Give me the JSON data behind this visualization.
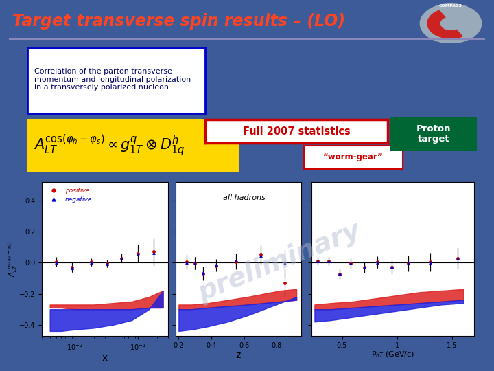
{
  "title": "Target transverse spin results – (LO)",
  "title_color": "#FF4422",
  "bg_color": "#3D5A99",
  "text_box_text": "Correlation of the parton transverse\nmomentum and longitudinal polarization\nin a transversely polarized nucleon",
  "worm_gear_text": "“worm-gear”",
  "full_stats_text": "Full 2007 statistics",
  "proton_target_text": "Proton\ntarget",
  "all_hadrons_text": "all hadrons",
  "preliminary_text": "preliminary",
  "legend_positive": "positive",
  "legend_negative": "negative",
  "xlabel1": "x",
  "xlabel2": "z",
  "xlabel3": "P$_{hT}$ (GeV/c)",
  "ylim": [
    -0.47,
    0.52
  ],
  "yticks": [
    -0.4,
    -0.2,
    0.0,
    0.2,
    0.4
  ],
  "x_positive": [
    0.005,
    0.009,
    0.018,
    0.032,
    0.055,
    0.1,
    0.18
  ],
  "x_positive_vals": [
    0.005,
    -0.03,
    0.005,
    -0.005,
    0.03,
    0.06,
    0.07
  ],
  "x_positive_err": [
    0.03,
    0.03,
    0.025,
    0.025,
    0.03,
    0.055,
    0.09
  ],
  "x_negative": [
    0.005,
    0.009,
    0.018,
    0.032,
    0.055,
    0.1,
    0.18
  ],
  "x_negative_vals": [
    0.003,
    -0.032,
    0.003,
    -0.007,
    0.028,
    0.055,
    0.065
  ],
  "x_negative_err": [
    0.028,
    0.028,
    0.022,
    0.022,
    0.028,
    0.05,
    0.085
  ],
  "z_positive": [
    0.25,
    0.3,
    0.35,
    0.43,
    0.55,
    0.7,
    0.85
  ],
  "z_positive_vals": [
    0.005,
    -0.005,
    -0.07,
    -0.02,
    0.005,
    0.055,
    -0.13
  ],
  "z_positive_err": [
    0.05,
    0.04,
    0.045,
    0.038,
    0.05,
    0.065,
    0.09
  ],
  "z_negative": [
    0.25,
    0.3,
    0.35,
    0.43,
    0.55,
    0.7,
    0.85
  ],
  "z_negative_vals": [
    0.002,
    -0.003,
    -0.065,
    -0.01,
    0.015,
    0.045,
    -0.005
  ],
  "z_negative_err": [
    0.045,
    0.038,
    0.042,
    0.035,
    0.046,
    0.06,
    0.085
  ],
  "pht_positive": [
    0.28,
    0.38,
    0.48,
    0.58,
    0.7,
    0.82,
    0.95,
    1.1,
    1.3,
    1.55
  ],
  "pht_positive_vals": [
    0.01,
    0.01,
    -0.075,
    -0.005,
    -0.03,
    0.005,
    -0.03,
    -0.005,
    0.005,
    0.03
  ],
  "pht_positive_err": [
    0.025,
    0.028,
    0.035,
    0.032,
    0.035,
    0.038,
    0.045,
    0.05,
    0.06,
    0.07
  ],
  "pht_negative": [
    0.28,
    0.38,
    0.48,
    0.58,
    0.7,
    0.82,
    0.95,
    1.1,
    1.3,
    1.55
  ],
  "pht_negative_vals": [
    0.01,
    0.01,
    -0.07,
    -0.003,
    -0.028,
    0.003,
    -0.025,
    -0.003,
    0.003,
    0.028
  ],
  "pht_negative_err": [
    0.022,
    0.025,
    0.032,
    0.029,
    0.032,
    0.035,
    0.042,
    0.047,
    0.056,
    0.065
  ],
  "band_x": [
    0.004,
    0.006,
    0.01,
    0.02,
    0.04,
    0.08,
    0.15,
    0.25
  ],
  "band_x_red_bot": [
    -0.29,
    -0.29,
    -0.3,
    -0.3,
    -0.3,
    -0.3,
    -0.29,
    -0.29
  ],
  "band_x_red_top": [
    -0.27,
    -0.27,
    -0.27,
    -0.27,
    -0.26,
    -0.25,
    -0.22,
    -0.18
  ],
  "band_x_blue_bot": [
    -0.44,
    -0.44,
    -0.43,
    -0.42,
    -0.4,
    -0.37,
    -0.3,
    -0.18
  ],
  "band_x_blue_top": [
    -0.3,
    -0.3,
    -0.3,
    -0.3,
    -0.3,
    -0.3,
    -0.29,
    -0.29
  ],
  "band_z": [
    0.2,
    0.28,
    0.38,
    0.5,
    0.62,
    0.72,
    0.82,
    0.92
  ],
  "band_z_red_bot": [
    -0.3,
    -0.3,
    -0.29,
    -0.28,
    -0.27,
    -0.26,
    -0.25,
    -0.24
  ],
  "band_z_red_top": [
    -0.27,
    -0.27,
    -0.26,
    -0.24,
    -0.22,
    -0.2,
    -0.18,
    -0.17
  ],
  "band_z_blue_bot": [
    -0.44,
    -0.43,
    -0.41,
    -0.38,
    -0.34,
    -0.3,
    -0.26,
    -0.22
  ],
  "band_z_blue_top": [
    -0.3,
    -0.3,
    -0.29,
    -0.28,
    -0.27,
    -0.26,
    -0.25,
    -0.24
  ],
  "band_pht": [
    0.25,
    0.4,
    0.6,
    0.8,
    1.0,
    1.2,
    1.4,
    1.6
  ],
  "band_pht_red_bot": [
    -0.3,
    -0.3,
    -0.29,
    -0.28,
    -0.27,
    -0.26,
    -0.25,
    -0.24
  ],
  "band_pht_red_top": [
    -0.27,
    -0.26,
    -0.25,
    -0.23,
    -0.21,
    -0.19,
    -0.18,
    -0.17
  ],
  "band_pht_blue_bot": [
    -0.38,
    -0.37,
    -0.35,
    -0.33,
    -0.31,
    -0.29,
    -0.27,
    -0.26
  ],
  "band_pht_blue_top": [
    -0.3,
    -0.3,
    -0.29,
    -0.28,
    -0.27,
    -0.26,
    -0.25,
    -0.24
  ]
}
